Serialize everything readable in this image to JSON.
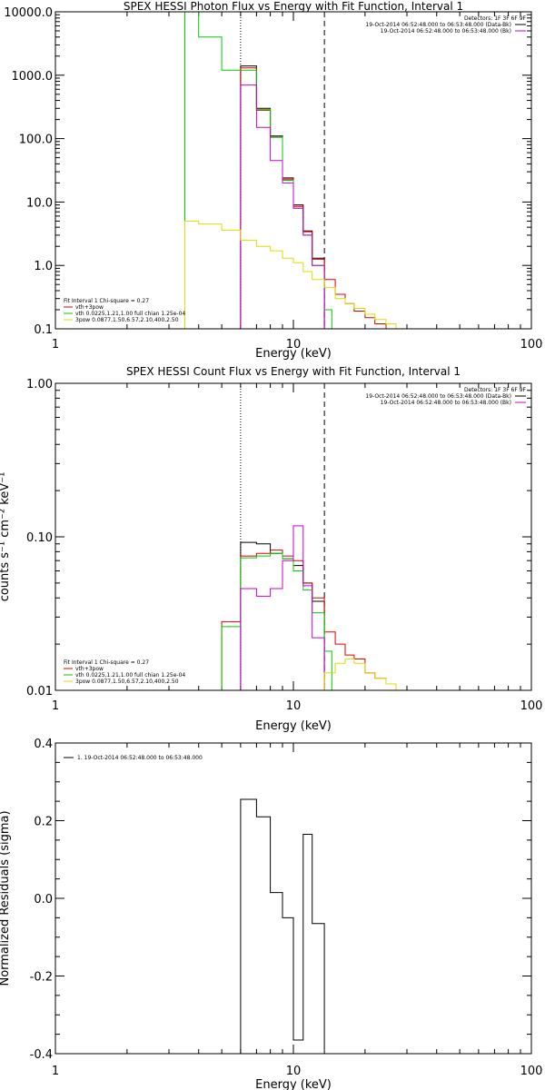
{
  "chart_data": [
    {
      "type": "line",
      "title": "SPEX HESSI Photon Flux vs Energy with Fit Function, Interval 1",
      "xlabel": "Energy (keV)",
      "ylabel": "",
      "xscale": "log",
      "yscale": "log",
      "xlim": [
        1,
        100
      ],
      "ylim": [
        0.1,
        10000
      ],
      "xticks": [
        1,
        10,
        100
      ],
      "xtick_labels": [
        "1",
        "10",
        "100"
      ],
      "yticks": [
        0.1,
        1,
        10,
        100,
        1000,
        10000
      ],
      "ytick_labels": [
        "0.1",
        "1.0",
        "10.0",
        "100.0",
        "1000.0",
        "10000.0"
      ],
      "vlines": [
        {
          "x": 6.0,
          "style": "dotted"
        },
        {
          "x": 13.5,
          "style": "dashed"
        }
      ],
      "legend_top": {
        "placement": "top-right",
        "lines": [
          {
            "text": "Detectors: 1F 3F 6F 9F",
            "color": ""
          },
          {
            "text": "19-Oct-2014 06:52:48.000 to 06:53:48.000 (Data-Bk)",
            "color": "#000000"
          },
          {
            "text": "19-Oct-2014 06:52:48.000 to 06:53:48.000 (Bk)",
            "color": "#cc00cc"
          }
        ]
      },
      "legend_bottom": {
        "placement": "bottom-left",
        "lines": [
          {
            "text": "Fit Interval 1    Chi-square = 0.27",
            "color": ""
          },
          {
            "text": "vth+3pow",
            "color": "#dd0000"
          },
          {
            "text": "vth 0.0225,1.21,1.00   full chian 1.25e-04",
            "color": "#00cc00"
          },
          {
            "text": "3pow 0.0877,1.50,6.57,2.10,400,2.50",
            "color": "#dddd00"
          }
        ]
      },
      "series": [
        {
          "color": "#000000",
          "edges": [
            6.0,
            7.0,
            8.0,
            9.0,
            10.0,
            11.0,
            12.0,
            13.5
          ],
          "values": [
            1400,
            300,
            110,
            24,
            9,
            3.5,
            1.3
          ]
        },
        {
          "color": "#dd0000",
          "edges": [
            6.0,
            7.0,
            8.0,
            9.0,
            10.0,
            11.0,
            12.0,
            13.5,
            15.0,
            16.5,
            18.0,
            20.0,
            22.0,
            24.5,
            27.0
          ],
          "values": [
            1300,
            280,
            105,
            23,
            8.5,
            3.4,
            1.25,
            0.6,
            0.35,
            0.25,
            0.19,
            0.15,
            0.12,
            0.1
          ]
        },
        {
          "color": "#00cc00",
          "edges": [
            3.5,
            4.0,
            5.0,
            6.0,
            7.0,
            8.0,
            9.0,
            10.0,
            11.0,
            12.0,
            13.5,
            14.5
          ],
          "values": [
            10000,
            4000,
            1200,
            1200,
            290,
            105,
            22,
            8,
            3,
            1,
            0.2
          ]
        },
        {
          "color": "#cc00cc",
          "edges": [
            6.0,
            7.0,
            8.0,
            9.0,
            10.0,
            11.0,
            12.0,
            13.5
          ],
          "values": [
            700,
            150,
            45,
            20,
            8,
            3,
            1
          ]
        },
        {
          "color": "#dddd00",
          "edges": [
            3.5,
            4.0,
            5.0,
            6.0,
            7.0,
            8.0,
            9.0,
            10.0,
            11.0,
            12.0,
            13.5,
            15.0,
            16.5,
            18.0,
            20.0,
            22.0,
            24.5,
            27.0
          ],
          "values": [
            5,
            4.5,
            3.6,
            2.5,
            2,
            1.7,
            1.3,
            1.1,
            0.8,
            0.6,
            0.45,
            0.3,
            0.25,
            0.21,
            0.17,
            0.14,
            0.12
          ]
        }
      ]
    },
    {
      "type": "line",
      "title": "SPEX HESSI Count Flux vs Energy with Fit Function, Interval 1",
      "xlabel": "Energy (keV)",
      "ylabel": "counts s⁻¹ cm⁻² keV⁻¹",
      "xscale": "log",
      "yscale": "log",
      "xlim": [
        1,
        100
      ],
      "ylim": [
        0.01,
        1.0
      ],
      "xticks": [
        1,
        10,
        100
      ],
      "xtick_labels": [
        "1",
        "10",
        "100"
      ],
      "yticks": [
        0.01,
        0.1,
        1.0
      ],
      "ytick_labels": [
        "0.01",
        "0.10",
        "1.00"
      ],
      "vlines": [
        {
          "x": 6.0,
          "style": "dotted"
        },
        {
          "x": 13.5,
          "style": "dashed"
        }
      ],
      "legend_top": {
        "placement": "top-right",
        "lines": [
          {
            "text": "Detectors: 1F 3F 6F 9F",
            "color": ""
          },
          {
            "text": "19-Oct-2014 06:52:48.000 to 06:53:48.000 (Data-Bk)",
            "color": "#000000"
          },
          {
            "text": "19-Oct-2014 06:52:48.000 to 06:53:48.000 (Bk)",
            "color": "#cc00cc"
          }
        ]
      },
      "legend_bottom": {
        "placement": "bottom-left",
        "lines": [
          {
            "text": "Fit Interval 1    Chi-square = 0.27",
            "color": ""
          },
          {
            "text": "vth+3pow",
            "color": "#dd0000"
          },
          {
            "text": "vth 0.0225,1.21,1.00   full chian 1.25e-04",
            "color": "#00cc00"
          },
          {
            "text": "3pow 0.0877,1.50,6.57,2.10,400,2.50",
            "color": "#dddd00"
          }
        ]
      },
      "series": [
        {
          "color": "#000000",
          "edges": [
            6.0,
            7.0,
            8.0,
            9.0,
            10.0,
            11.0,
            12.0,
            13.5
          ],
          "values": [
            0.092,
            0.09,
            0.078,
            0.072,
            0.065,
            0.05,
            0.038
          ]
        },
        {
          "color": "#dd0000",
          "edges": [
            5.0,
            6.0,
            7.0,
            8.0,
            9.0,
            10.0,
            11.0,
            12.0,
            13.5,
            15.0,
            16.5,
            18.0,
            20.0,
            22.0,
            24.5,
            27.0
          ],
          "values": [
            0.028,
            0.075,
            0.078,
            0.082,
            0.075,
            0.07,
            0.05,
            0.04,
            0.024,
            0.02,
            0.017,
            0.016,
            0.013,
            0.012,
            0.011
          ]
        },
        {
          "color": "#00cc00",
          "edges": [
            5.0,
            6.0,
            7.0,
            8.0,
            9.0,
            10.0,
            11.0,
            12.0,
            13.5,
            14.5
          ],
          "values": [
            0.026,
            0.073,
            0.075,
            0.078,
            0.072,
            0.06,
            0.045,
            0.032,
            0.018
          ]
        },
        {
          "color": "#cc00cc",
          "edges": [
            6.0,
            7.0,
            8.0,
            9.0,
            10.0,
            11.0,
            12.0,
            13.5
          ],
          "values": [
            0.046,
            0.041,
            0.046,
            0.07,
            0.118,
            0.048,
            0.022
          ]
        },
        {
          "color": "#dddd00",
          "edges": [
            13.5,
            15.0,
            16.5,
            18.0,
            20.0,
            22.0,
            24.5,
            27.0
          ],
          "values": [
            0.013,
            0.015,
            0.016,
            0.015,
            0.013,
            0.012,
            0.011
          ]
        }
      ]
    },
    {
      "type": "line",
      "title": "",
      "xlabel": "Energy (keV)",
      "ylabel": "Normalized Residuals (sigma)",
      "xscale": "log",
      "yscale": "linear",
      "xlim": [
        1,
        100
      ],
      "ylim": [
        -0.4,
        0.4
      ],
      "xticks": [
        1,
        10,
        100
      ],
      "xtick_labels": [
        "1",
        "10",
        "100"
      ],
      "yticks": [
        -0.4,
        -0.2,
        0.0,
        0.2,
        0.4
      ],
      "ytick_labels": [
        "-0.4",
        "-0.2",
        "0.0",
        "0.2",
        "0.4"
      ],
      "legend_top": {
        "placement": "top-left",
        "lines": [
          {
            "text": "1. 19-Oct-2014 06:52:48.000 to 06:53:48.000",
            "color": "#000000"
          }
        ]
      },
      "series": [
        {
          "color": "#000000",
          "edges": [
            6.0,
            7.0,
            8.0,
            9.0,
            10.0,
            11.0,
            12.0,
            13.5
          ],
          "values": [
            0.255,
            0.21,
            0.015,
            -0.05,
            -0.365,
            0.165,
            -0.065
          ]
        }
      ]
    }
  ]
}
